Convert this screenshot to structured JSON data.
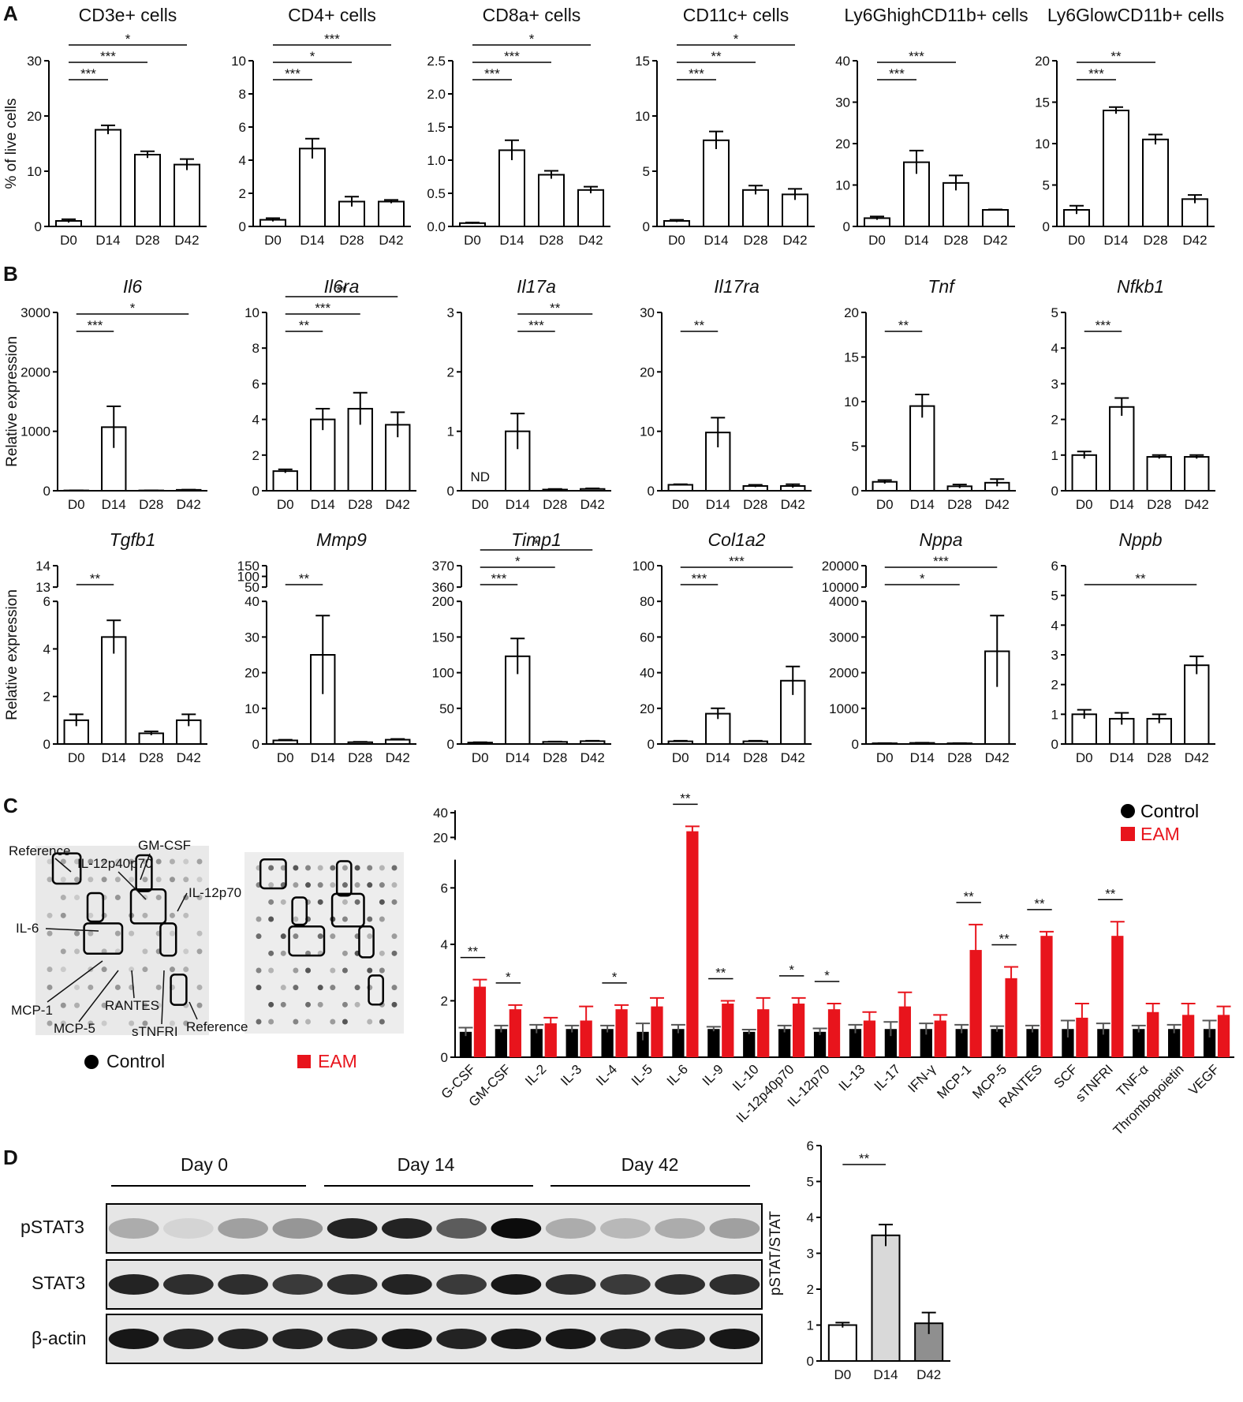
{
  "panel_labels": [
    "A",
    "B",
    "C",
    "D"
  ],
  "array_labels": [
    "Reference",
    "GM-CSF",
    "IL-12p40p70",
    "IL-12p70",
    "IL-6",
    "MCP-1",
    "MCP-5",
    "RANTES",
    "sTNFRI",
    "Reference"
  ],
  "western": {
    "days": [
      "Day 0",
      "Day 14",
      "Day 42"
    ],
    "rows": [
      "pSTAT3",
      "STAT3",
      "β-actin"
    ]
  },
  "chart_data": [
    {
      "type": "bar",
      "title": "CD3e+ cells",
      "ylabel": "% of live cells",
      "categories": [
        "D0",
        "D14",
        "D28",
        "D42"
      ],
      "values": [
        1,
        17.5,
        13,
        11.2
      ],
      "errors": [
        0.3,
        0.8,
        0.6,
        1
      ],
      "ylim": [
        0,
        30
      ],
      "yticks": [
        0,
        10,
        20,
        30
      ],
      "color": "#ffffff",
      "significance": [
        {
          "pair": [
            0,
            1
          ],
          "label": "***"
        },
        {
          "pair": [
            0,
            2
          ],
          "label": "***"
        },
        {
          "pair": [
            0,
            3
          ],
          "label": "*"
        }
      ]
    },
    {
      "type": "bar",
      "title": "CD4+ cells",
      "categories": [
        "D0",
        "D14",
        "D28",
        "D42"
      ],
      "values": [
        0.4,
        4.7,
        1.5,
        1.5
      ],
      "errors": [
        0.1,
        0.6,
        0.3,
        0.1
      ],
      "ylim": [
        0,
        10
      ],
      "yticks": [
        0,
        2,
        4,
        6,
        8,
        10
      ],
      "color": "#ffffff",
      "significance": [
        {
          "pair": [
            0,
            1
          ],
          "label": "***"
        },
        {
          "pair": [
            0,
            2
          ],
          "label": "*"
        },
        {
          "pair": [
            0,
            3
          ],
          "label": "***"
        }
      ]
    },
    {
      "type": "bar",
      "title": "CD8a+ cells",
      "categories": [
        "D0",
        "D14",
        "D28",
        "D42"
      ],
      "values": [
        0.05,
        1.15,
        0.78,
        0.55
      ],
      "errors": [
        0.01,
        0.15,
        0.06,
        0.05
      ],
      "ylim": [
        0,
        2.5
      ],
      "yticks": [
        {
          "value": 0,
          "label": "0.0"
        },
        0.5,
        {
          "value": 1,
          "label": "1.0"
        },
        1.5,
        {
          "value": 2,
          "label": "2.0"
        },
        2.5
      ],
      "color": "#ffffff",
      "significance": [
        {
          "pair": [
            0,
            1
          ],
          "label": "***"
        },
        {
          "pair": [
            0,
            2
          ],
          "label": "***"
        },
        {
          "pair": [
            0,
            3
          ],
          "label": "*"
        }
      ]
    },
    {
      "type": "bar",
      "title": "CD11c+ cells",
      "categories": [
        "D0",
        "D14",
        "D28",
        "D42"
      ],
      "values": [
        0.5,
        7.8,
        3.3,
        2.9
      ],
      "errors": [
        0.1,
        0.8,
        0.4,
        0.5
      ],
      "ylim": [
        0,
        15
      ],
      "yticks": [
        0,
        5,
        10,
        15
      ],
      "color": "#ffffff",
      "significance": [
        {
          "pair": [
            0,
            1
          ],
          "label": "***"
        },
        {
          "pair": [
            0,
            2
          ],
          "label": "**"
        },
        {
          "pair": [
            0,
            3
          ],
          "label": "*"
        }
      ]
    },
    {
      "type": "bar",
      "title": "Ly6GhighCD11b+ cells",
      "categories": [
        "D0",
        "D14",
        "D28",
        "D42"
      ],
      "values": [
        2,
        15.5,
        10.5,
        4
      ],
      "errors": [
        0.4,
        2.8,
        1.8,
        0.1
      ],
      "ylim": [
        0,
        40
      ],
      "yticks": [
        0,
        10,
        20,
        30,
        40
      ],
      "color": "#ffffff",
      "significance": [
        {
          "pair": [
            0,
            1
          ],
          "label": "***"
        },
        {
          "pair": [
            0,
            2
          ],
          "label": "***"
        }
      ]
    },
    {
      "type": "bar",
      "title": "Ly6GlowCD11b+ cells",
      "categories": [
        "D0",
        "D14",
        "D28",
        "D42"
      ],
      "values": [
        2,
        14,
        10.5,
        3.3
      ],
      "errors": [
        0.5,
        0.4,
        0.6,
        0.5
      ],
      "ylim": [
        0,
        20
      ],
      "yticks": [
        0,
        5,
        10,
        15,
        20
      ],
      "color": "#ffffff",
      "significance": [
        {
          "pair": [
            0,
            1
          ],
          "label": "***"
        },
        {
          "pair": [
            0,
            2
          ],
          "label": "**"
        }
      ]
    },
    {
      "type": "bar",
      "title": "Il6",
      "title_style": "italic",
      "ylabel": "Relative expression",
      "categories": [
        "D0",
        "D14",
        "D28",
        "D42"
      ],
      "values": [
        5,
        1070,
        5,
        15
      ],
      "errors": [
        1,
        350,
        1,
        3
      ],
      "ylim": [
        0,
        3000
      ],
      "yticks": [
        0,
        1000,
        2000,
        3000
      ],
      "color": "#ffffff",
      "significance": [
        {
          "pair": [
            0,
            1
          ],
          "label": "***"
        },
        {
          "pair": [
            0,
            3
          ],
          "label": "*"
        }
      ]
    },
    {
      "type": "bar",
      "title": "Il6ra",
      "title_style": "italic",
      "categories": [
        "D0",
        "D14",
        "D28",
        "D42"
      ],
      "values": [
        1.1,
        4,
        4.6,
        3.7
      ],
      "errors": [
        0.1,
        0.6,
        0.9,
        0.7
      ],
      "ylim": [
        0,
        10
      ],
      "yticks": [
        0,
        2,
        4,
        6,
        8,
        10
      ],
      "color": "#ffffff",
      "significance": [
        {
          "pair": [
            0,
            1
          ],
          "label": "**"
        },
        {
          "pair": [
            0,
            2
          ],
          "label": "***"
        },
        {
          "pair": [
            0,
            3
          ],
          "label": "**"
        }
      ]
    },
    {
      "type": "bar",
      "title": "Il17a",
      "title_style": "italic",
      "categories": [
        "D0",
        "D14",
        "D28",
        "D42"
      ],
      "values": [
        null,
        1,
        0.02,
        0.03
      ],
      "errors": [
        null,
        0.3,
        0.01,
        0.01
      ],
      "ylim": [
        0,
        3
      ],
      "yticks": [
        0,
        1,
        2,
        3
      ],
      "color": "#ffffff",
      "annotations": [
        {
          "index": 0,
          "text": "ND"
        }
      ],
      "significance": [
        {
          "pair": [
            1,
            2
          ],
          "label": "***"
        },
        {
          "pair": [
            1,
            3
          ],
          "label": "**"
        }
      ]
    },
    {
      "type": "bar",
      "title": "Il17ra",
      "title_style": "italic",
      "categories": [
        "D0",
        "D14",
        "D28",
        "D42"
      ],
      "values": [
        1,
        9.8,
        0.8,
        0.8
      ],
      "errors": [
        0.1,
        2.5,
        0.2,
        0.3
      ],
      "ylim": [
        0,
        30
      ],
      "yticks": [
        0,
        10,
        20,
        30
      ],
      "color": "#ffffff",
      "significance": [
        {
          "pair": [
            0,
            1
          ],
          "label": "**"
        }
      ]
    },
    {
      "type": "bar",
      "title": "Tnf",
      "title_style": "italic",
      "categories": [
        "D0",
        "D14",
        "D28",
        "D42"
      ],
      "values": [
        1,
        9.5,
        0.5,
        0.9
      ],
      "errors": [
        0.2,
        1.3,
        0.2,
        0.4
      ],
      "ylim": [
        0,
        20
      ],
      "yticks": [
        0,
        5,
        10,
        15,
        20
      ],
      "color": "#ffffff",
      "significance": [
        {
          "pair": [
            0,
            1
          ],
          "label": "**"
        }
      ]
    },
    {
      "type": "bar",
      "title": "Nfkb1",
      "title_style": "italic",
      "categories": [
        "D0",
        "D14",
        "D28",
        "D42"
      ],
      "values": [
        1,
        2.35,
        0.95,
        0.95
      ],
      "errors": [
        0.1,
        0.25,
        0.05,
        0.05
      ],
      "ylim": [
        0,
        5
      ],
      "yticks": [
        0,
        1,
        2,
        3,
        4,
        5
      ],
      "color": "#ffffff",
      "significance": [
        {
          "pair": [
            0,
            1
          ],
          "label": "***"
        }
      ]
    },
    {
      "type": "bar",
      "title": "Tgfb1",
      "title_style": "italic",
      "ylabel": "Relative expression",
      "categories": [
        "D0",
        "D14",
        "D28",
        "D42"
      ],
      "values": [
        1,
        4.5,
        0.45,
        1
      ],
      "errors": [
        0.25,
        0.7,
        0.08,
        0.25
      ],
      "ylim": [
        0,
        14
      ],
      "ybreak": [
        6,
        13
      ],
      "yticks": [
        0,
        2,
        4,
        6,
        13,
        14
      ],
      "color": "#ffffff",
      "significance": [
        {
          "pair": [
            0,
            1
          ],
          "label": "**"
        }
      ]
    },
    {
      "type": "bar",
      "title": "Mmp9",
      "title_style": "italic",
      "categories": [
        "D0",
        "D14",
        "D28",
        "D42"
      ],
      "values": [
        1,
        25,
        0.5,
        1.2
      ],
      "errors": [
        0.2,
        11,
        0.1,
        0.2
      ],
      "ylim": [
        0,
        150
      ],
      "ybreak": [
        40,
        50
      ],
      "yticks": [
        0,
        10,
        20,
        30,
        40,
        50,
        100,
        150
      ],
      "color": "#ffffff",
      "significance": [
        {
          "pair": [
            0,
            1
          ],
          "label": "**"
        }
      ]
    },
    {
      "type": "bar",
      "title": "Timp1",
      "title_style": "italic",
      "categories": [
        "D0",
        "D14",
        "D28",
        "D42"
      ],
      "values": [
        2,
        123,
        3,
        4
      ],
      "errors": [
        0.5,
        25,
        0.5,
        0.5
      ],
      "ylim": [
        0,
        370
      ],
      "ybreak": [
        200,
        360
      ],
      "yticks": [
        0,
        50,
        100,
        150,
        200,
        360,
        370
      ],
      "color": "#ffffff",
      "significance": [
        {
          "pair": [
            0,
            1
          ],
          "label": "***"
        },
        {
          "pair": [
            0,
            2
          ],
          "label": "*"
        },
        {
          "pair": [
            0,
            3
          ],
          "label": "*"
        }
      ]
    },
    {
      "type": "bar",
      "title": "Col1a2",
      "title_style": "italic",
      "categories": [
        "D0",
        "D14",
        "D28",
        "D42"
      ],
      "values": [
        1.5,
        17,
        1.5,
        35.5
      ],
      "errors": [
        0.3,
        3,
        0.3,
        8
      ],
      "ylim": [
        0,
        100
      ],
      "yticks": [
        0,
        20,
        40,
        60,
        80,
        100
      ],
      "color": "#ffffff",
      "significance": [
        {
          "pair": [
            0,
            1
          ],
          "label": "***"
        },
        {
          "pair": [
            0,
            3
          ],
          "label": "***"
        }
      ]
    },
    {
      "type": "bar",
      "title": "Nppa",
      "title_style": "italic",
      "categories": [
        "D0",
        "D14",
        "D28",
        "D42"
      ],
      "values": [
        20,
        30,
        20,
        2600
      ],
      "errors": [
        5,
        5,
        5,
        1000
      ],
      "ylim": [
        0,
        20000
      ],
      "ybreak": [
        4000,
        10000
      ],
      "yticks": [
        0,
        1000,
        2000,
        3000,
        4000,
        10000,
        20000
      ],
      "color": "#ffffff",
      "significance": [
        {
          "pair": [
            0,
            2
          ],
          "label": "*"
        },
        {
          "pair": [
            0,
            3
          ],
          "label": "***"
        }
      ]
    },
    {
      "type": "bar",
      "title": "Nppb",
      "title_style": "italic",
      "categories": [
        "D0",
        "D14",
        "D28",
        "D42"
      ],
      "values": [
        1,
        0.85,
        0.85,
        2.65
      ],
      "errors": [
        0.15,
        0.2,
        0.15,
        0.3
      ],
      "ylim": [
        0,
        6
      ],
      "yticks": [
        0,
        1,
        2,
        3,
        4,
        5,
        6
      ],
      "color": "#ffffff",
      "significance": [
        {
          "pair": [
            0,
            3
          ],
          "label": "**"
        }
      ]
    },
    {
      "type": "grouped_bar",
      "categories": [
        "G-CSF",
        "GM-CSF",
        "IL-2",
        "IL-3",
        "IL-4",
        "IL-5",
        "IL-6",
        "IL-9",
        "IL-10",
        "IL-12p40p70",
        "IL-12p70",
        "IL-13",
        "IL-17",
        "IFN-γ",
        "MCP-1",
        "MCP-5",
        "RANTES",
        "SCF",
        "sTNFRI",
        "TNF-α",
        "Thrombopoietin",
        "VEGF"
      ],
      "series": [
        {
          "name": "Control",
          "color": "#000000",
          "values": [
            0.9,
            1,
            1,
            1,
            1,
            0.9,
            1,
            1,
            0.9,
            1,
            0.9,
            1,
            1,
            1,
            1,
            1,
            1,
            1,
            1,
            1,
            1,
            1
          ],
          "errors": [
            0.15,
            0.12,
            0.15,
            0.12,
            0.12,
            0.3,
            0.15,
            0.08,
            0.08,
            0.12,
            0.12,
            0.15,
            0.25,
            0.2,
            0.15,
            0.1,
            0.12,
            0.3,
            0.2,
            0.12,
            0.15,
            0.3
          ]
        },
        {
          "name": "EAM",
          "color": "#e8141c",
          "values": [
            2.5,
            1.7,
            1.2,
            1.3,
            1.7,
            1.8,
            25,
            1.9,
            1.7,
            1.9,
            1.7,
            1.3,
            1.8,
            1.3,
            3.8,
            2.8,
            4.3,
            1.4,
            4.3,
            1.6,
            1.5,
            1.5
          ],
          "errors": [
            0.25,
            0.15,
            0.2,
            0.5,
            0.15,
            0.3,
            4,
            0.1,
            0.4,
            0.2,
            0.2,
            0.3,
            0.5,
            0.2,
            0.9,
            0.4,
            0.15,
            0.5,
            0.5,
            0.3,
            0.4,
            0.3
          ]
        }
      ],
      "ylim": [
        0,
        42
      ],
      "ybreak": [
        7,
        18
      ],
      "yticks": [
        0,
        2,
        4,
        6,
        20,
        40
      ],
      "legend": "top-right",
      "significance": [
        {
          "index": 0,
          "label": "**"
        },
        {
          "index": 1,
          "label": "*"
        },
        {
          "index": 4,
          "label": "*"
        },
        {
          "index": 6,
          "label": "**"
        },
        {
          "index": 7,
          "label": "**"
        },
        {
          "index": 9,
          "label": "*"
        },
        {
          "index": 10,
          "label": "*"
        },
        {
          "index": 14,
          "label": "**"
        },
        {
          "index": 15,
          "label": "**"
        },
        {
          "index": 16,
          "label": "**"
        },
        {
          "index": 18,
          "label": "**"
        }
      ]
    },
    {
      "type": "bar",
      "ylabel": "pSTAT/STAT",
      "categories": [
        "D0",
        "D14",
        "D42"
      ],
      "values": [
        1,
        3.5,
        1.05
      ],
      "errors": [
        0.07,
        0.3,
        0.3
      ],
      "ylim": [
        0,
        6
      ],
      "yticks": [
        0,
        1,
        2,
        3,
        4,
        5,
        6
      ],
      "colors": [
        "#ffffff",
        "#d9d9d9",
        "#8f8f8f"
      ],
      "significance": [
        {
          "pair": [
            0,
            1
          ],
          "label": "**"
        }
      ]
    }
  ]
}
